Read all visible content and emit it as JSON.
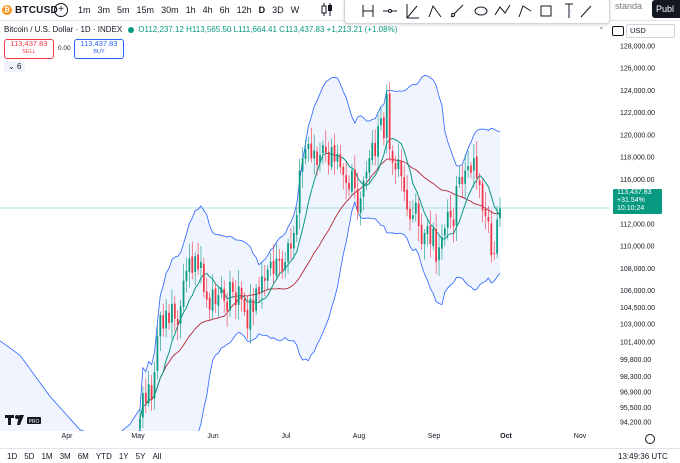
{
  "header": {
    "symbol": "BTCUSD",
    "coin_glyph": "₿",
    "intervals": [
      "1m",
      "3m",
      "5m",
      "15m",
      "30m",
      "1h",
      "4h",
      "6h",
      "12h",
      "D",
      "3D",
      "W"
    ],
    "active_interval": "D",
    "layout_label": "standa",
    "publish_label": "Publ"
  },
  "legend": {
    "title": "Bitcoin / U.S. Dollar · 1D · INDEX",
    "open": "O112,237.12",
    "high": "H113,565.50",
    "low": "L111,664.41",
    "close": "C113,437.83",
    "change": "+1,213.21 (+1.08%)",
    "sell_price": "113,437.83",
    "sell_label": "SELL",
    "spread": "0.00",
    "buy_price": "113,437.83",
    "buy_label": "BUY",
    "indicator_count": "6"
  },
  "price_axis": {
    "currency": "USD",
    "labels": [
      {
        "value": 128000,
        "text": "128,000.00"
      },
      {
        "value": 126000,
        "text": "126,000.00"
      },
      {
        "value": 124000,
        "text": "124,000.00"
      },
      {
        "value": 122000,
        "text": "122,000.00"
      },
      {
        "value": 120000,
        "text": "120,000.00"
      },
      {
        "value": 118000,
        "text": "118,000.00"
      },
      {
        "value": 116000,
        "text": "116,000.00"
      },
      {
        "value": 114000,
        "text": "114,000.00"
      },
      {
        "value": 112000,
        "text": "112,000.00"
      },
      {
        "value": 110000,
        "text": "110,000.00"
      },
      {
        "value": 108000,
        "text": "108,000.00"
      },
      {
        "value": 106000,
        "text": "106,000.00"
      },
      {
        "value": 104500,
        "text": "104,500.00"
      },
      {
        "value": 103000,
        "text": "103,000.00"
      },
      {
        "value": 101400,
        "text": "101,400.00"
      },
      {
        "value": 99800,
        "text": "99,800.00"
      },
      {
        "value": 98300,
        "text": "98,300.00"
      },
      {
        "value": 96900,
        "text": "96,900.00"
      },
      {
        "value": 95500,
        "text": "95,500.00"
      },
      {
        "value": 94200,
        "text": "94,200.00"
      }
    ],
    "last_price": "113,437.83",
    "last_change": "+31.54%",
    "countdown": "10:10:24"
  },
  "time_axis": [
    "Apr",
    "May",
    "Jun",
    "Jul",
    "Aug",
    "Sep",
    "Oct",
    "Nov"
  ],
  "ranges": [
    "1D",
    "5D",
    "1M",
    "3M",
    "6M",
    "YTD",
    "1Y",
    "5Y",
    "All"
  ],
  "clock": "13:49:36 UTC",
  "colors": {
    "up": "#089981",
    "down": "#f23645",
    "band": "#2962ff",
    "ma_fast": "#089981",
    "ma_slow": "#b2283a"
  },
  "chart_data": {
    "type": "candlestick",
    "x_start": "2025-05-01",
    "x_end": "2025-09-30",
    "closes": [
      94500,
      96800,
      95900,
      97600,
      96200,
      98700,
      101900,
      103800,
      102600,
      104200,
      103100,
      104800,
      103500,
      102900,
      104600,
      106900,
      107800,
      108900,
      107600,
      109100,
      107900,
      108600,
      105900,
      105200,
      104300,
      106100,
      104800,
      105600,
      106300,
      105100,
      104200,
      106800,
      105900,
      104700,
      106400,
      105200,
      104100,
      102600,
      105300,
      104100,
      106200,
      105800,
      107300,
      106900,
      107900,
      108600,
      107500,
      108900,
      108700,
      107700,
      108600,
      110300,
      109800,
      111200,
      112800,
      116800,
      117900,
      118700,
      119200,
      117900,
      118600,
      117300,
      118200,
      119100,
      118400,
      117300,
      118900,
      117600,
      118300,
      117100,
      116400,
      115700,
      115100,
      116800,
      115200,
      113100,
      114300,
      115900,
      116700,
      117900,
      119300,
      118100,
      120800,
      121500,
      119700,
      123700,
      118700,
      117500,
      116900,
      117800,
      116300,
      114900,
      113300,
      112400,
      112800,
      113900,
      111800,
      110200,
      111200,
      111800,
      110200,
      111600,
      108600,
      109900,
      110800,
      111600,
      113100,
      112600,
      111800,
      115400,
      116200,
      115600,
      116800,
      117200,
      116600,
      117900,
      116100,
      115500,
      113200,
      112700,
      112200,
      109200,
      109300,
      112400,
      113400
    ],
    "ylim": [
      93500,
      128800
    ]
  }
}
